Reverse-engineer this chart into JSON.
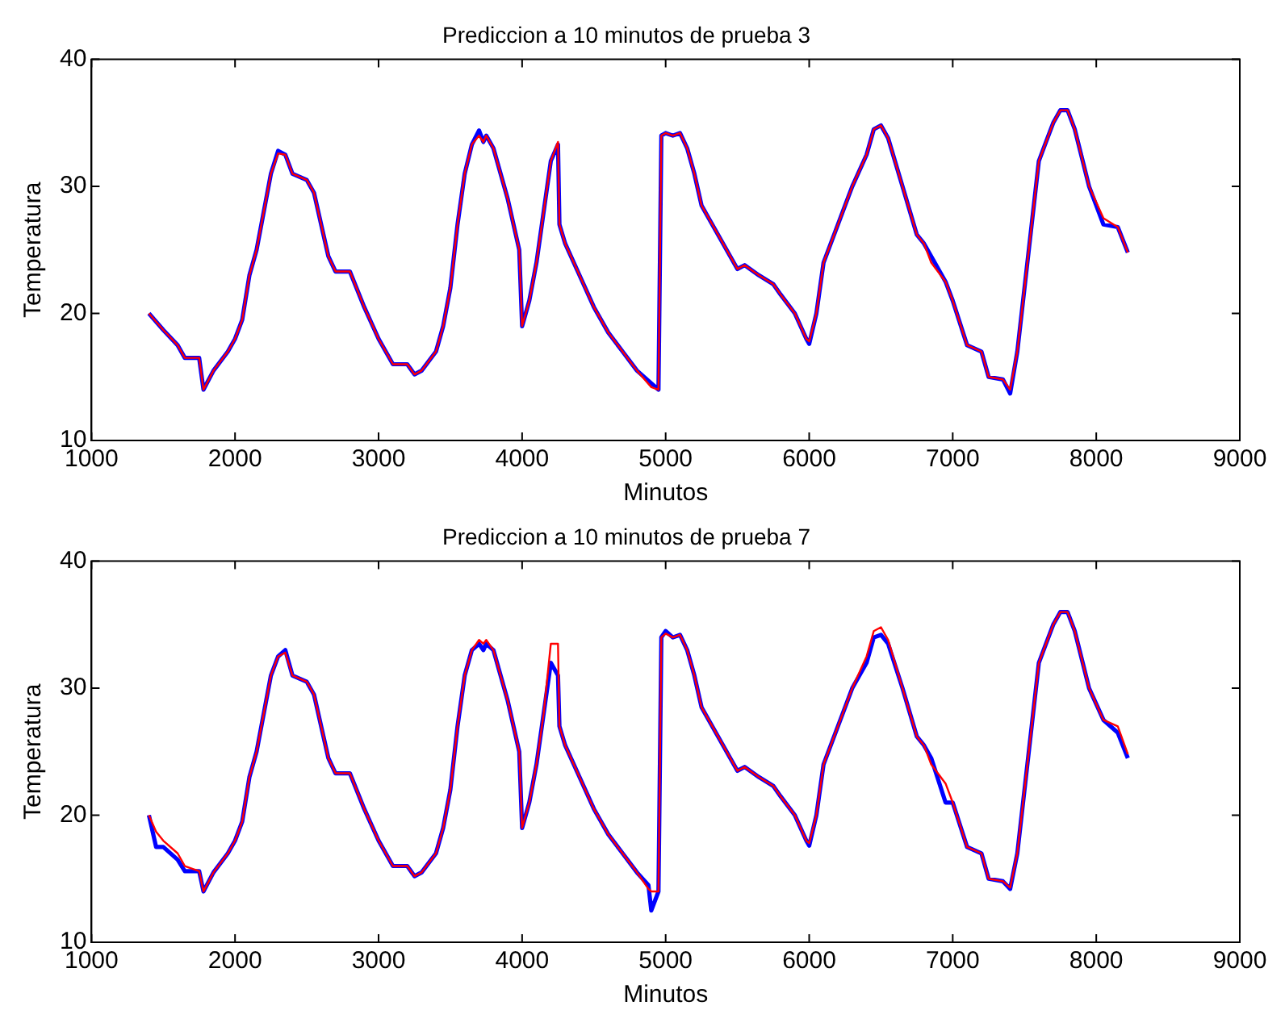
{
  "chart_data": [
    {
      "type": "line",
      "title": "Prediccion a 10 minutos de prueba 3",
      "xlabel": "Minutos",
      "ylabel": "Temperatura",
      "xlim": [
        1000,
        9000
      ],
      "xticks": [
        1000,
        2000,
        3000,
        4000,
        5000,
        6000,
        7000,
        8000,
        9000
      ],
      "ylim": [
        10,
        40
      ],
      "yticks": [
        10,
        20,
        30,
        40
      ],
      "grid": false,
      "legend": false,
      "marker": "none",
      "line_style": "solid",
      "x": [
        1400,
        1500,
        1600,
        1650,
        1750,
        1780,
        1850,
        1950,
        2000,
        2050,
        2100,
        2150,
        2200,
        2250,
        2300,
        2350,
        2400,
        2500,
        2550,
        2600,
        2650,
        2700,
        2800,
        2900,
        3000,
        3050,
        3100,
        3200,
        3250,
        3300,
        3400,
        3450,
        3500,
        3550,
        3600,
        3650,
        3700,
        3730,
        3750,
        3800,
        3850,
        3900,
        3980,
        4000,
        4050,
        4100,
        4150,
        4200,
        4250,
        4260,
        4300,
        4400,
        4500,
        4600,
        4700,
        4800,
        4900,
        4950,
        4970,
        5000,
        5050,
        5100,
        5150,
        5200,
        5250,
        5300,
        5400,
        5500,
        5550,
        5650,
        5750,
        5800,
        5900,
        5980,
        6000,
        6050,
        6100,
        6200,
        6300,
        6400,
        6450,
        6500,
        6550,
        6650,
        6750,
        6800,
        6850,
        6950,
        7000,
        7100,
        7200,
        7250,
        7350,
        7400,
        7450,
        7500,
        7550,
        7600,
        7650,
        7700,
        7750,
        7800,
        7850,
        7950,
        8050,
        8150,
        8220
      ],
      "series": [
        {
          "color": "#0000ff",
          "values": [
            20,
            18.7,
            17.5,
            16.5,
            16.5,
            14,
            15.5,
            17,
            18,
            19.5,
            23,
            25,
            28,
            31,
            32.8,
            32.5,
            31,
            30.5,
            29.5,
            27,
            24.5,
            23.3,
            23.3,
            20.5,
            18,
            17,
            16,
            16,
            15.2,
            15.5,
            17,
            19,
            22,
            27,
            31,
            33.3,
            34.4,
            33.5,
            34,
            33,
            31,
            29,
            25,
            19,
            21,
            24,
            28,
            32,
            33.3,
            27,
            25.5,
            23,
            20.5,
            18.5,
            17,
            15.5,
            14.5,
            14,
            34,
            34.2,
            34,
            34.2,
            33,
            31,
            28.5,
            27.5,
            25.5,
            23.5,
            23.8,
            23,
            22.3,
            21.5,
            20,
            18,
            17.6,
            20,
            24,
            27,
            30,
            32.5,
            34.5,
            34.8,
            33.8,
            30,
            26.2,
            25.5,
            24.5,
            22.5,
            21,
            17.5,
            17,
            15,
            14.8,
            13.7,
            17,
            22,
            27,
            32,
            33.5,
            35,
            36,
            36,
            34.5,
            30,
            27,
            26.8,
            24.8
          ]
        },
        {
          "color": "#ff0000",
          "values": [
            20,
            18.7,
            17.5,
            16.5,
            16.5,
            14,
            15.5,
            17,
            18,
            19.5,
            23,
            25,
            28,
            31,
            32.6,
            32.5,
            31,
            30.5,
            29.5,
            27,
            24.5,
            23.3,
            23.3,
            20.5,
            18,
            17,
            16,
            16,
            15.2,
            15.5,
            17,
            19,
            22,
            27,
            31,
            33.3,
            34,
            33.5,
            34,
            33,
            31,
            29,
            25,
            19,
            21,
            24,
            28,
            32,
            33.5,
            27,
            25.5,
            23,
            20.5,
            18.5,
            17,
            15.5,
            14.2,
            14,
            34,
            34.2,
            34,
            34.2,
            33,
            31,
            28.5,
            27.5,
            25.5,
            23.5,
            23.8,
            23,
            22.3,
            21.5,
            20,
            18,
            17.8,
            20,
            24,
            27,
            30,
            32.5,
            34.5,
            34.8,
            33.8,
            30,
            26.2,
            25.5,
            24,
            22.5,
            21,
            17.5,
            17,
            15,
            14.8,
            14,
            17,
            22,
            27,
            32,
            33.5,
            35,
            36,
            36,
            34.5,
            30,
            27.5,
            26.8,
            24.8
          ]
        }
      ]
    },
    {
      "type": "line",
      "title": "Prediccion a 10 minutos de prueba 7",
      "xlabel": "Minutos",
      "ylabel": "Temperatura",
      "xlim": [
        1000,
        9000
      ],
      "xticks": [
        1000,
        2000,
        3000,
        4000,
        5000,
        6000,
        7000,
        8000,
        9000
      ],
      "ylim": [
        10,
        40
      ],
      "yticks": [
        10,
        20,
        30,
        40
      ],
      "grid": false,
      "legend": false,
      "marker": "none",
      "line_style": "solid",
      "x": [
        1400,
        1450,
        1500,
        1600,
        1650,
        1750,
        1780,
        1850,
        1950,
        2000,
        2050,
        2100,
        2150,
        2200,
        2250,
        2300,
        2350,
        2400,
        2500,
        2550,
        2600,
        2650,
        2700,
        2800,
        2900,
        3000,
        3050,
        3100,
        3200,
        3250,
        3300,
        3400,
        3450,
        3500,
        3550,
        3600,
        3650,
        3700,
        3730,
        3750,
        3800,
        3850,
        3900,
        3980,
        4000,
        4050,
        4100,
        4150,
        4200,
        4250,
        4260,
        4300,
        4400,
        4500,
        4600,
        4700,
        4800,
        4880,
        4900,
        4950,
        4970,
        5000,
        5050,
        5100,
        5150,
        5200,
        5250,
        5300,
        5400,
        5500,
        5550,
        5650,
        5750,
        5800,
        5900,
        5980,
        6000,
        6050,
        6100,
        6200,
        6300,
        6400,
        6450,
        6500,
        6550,
        6650,
        6750,
        6800,
        6850,
        6950,
        7000,
        7100,
        7200,
        7250,
        7350,
        7400,
        7450,
        7500,
        7550,
        7600,
        7650,
        7700,
        7750,
        7800,
        7850,
        7950,
        8050,
        8150,
        8220
      ],
      "series": [
        {
          "color": "#0000ff",
          "values": [
            20,
            17.5,
            17.5,
            16.5,
            15.6,
            15.6,
            14,
            15.5,
            17,
            18,
            19.5,
            23,
            25,
            28,
            31,
            32.5,
            33,
            31,
            30.5,
            29.5,
            27,
            24.5,
            23.3,
            23.3,
            20.5,
            18,
            17,
            16,
            16,
            15.2,
            15.5,
            17,
            19,
            22,
            27,
            31,
            33,
            33.5,
            33,
            33.5,
            33,
            31,
            29,
            25,
            19,
            21,
            24,
            28,
            32,
            31,
            27,
            25.5,
            23,
            20.5,
            18.5,
            17,
            15.5,
            14.5,
            12.5,
            14,
            34,
            34.5,
            34,
            34.2,
            33,
            31,
            28.5,
            27.5,
            25.5,
            23.5,
            23.8,
            23,
            22.3,
            21.5,
            20,
            18,
            17.6,
            20,
            24,
            27,
            30,
            32,
            34,
            34.2,
            33.5,
            30,
            26.2,
            25.5,
            24.5,
            21,
            21,
            17.5,
            17,
            15,
            14.8,
            14.2,
            17,
            22,
            27,
            32,
            33.5,
            35,
            36,
            36,
            34.5,
            30,
            27.5,
            26.5,
            24.5
          ]
        },
        {
          "color": "#ff0000",
          "values": [
            20,
            18.7,
            18,
            17,
            16,
            15.6,
            14,
            15.5,
            17,
            18,
            19.5,
            23,
            25,
            28,
            31,
            32.5,
            32.8,
            31,
            30.5,
            29.5,
            27,
            24.5,
            23.3,
            23.3,
            20.5,
            18,
            17,
            16,
            16,
            15.2,
            15.5,
            17,
            19,
            22,
            27,
            31,
            33,
            33.8,
            33.5,
            33.8,
            33,
            31,
            29,
            25,
            19,
            21,
            24,
            28,
            33.5,
            33.5,
            27,
            25.5,
            23,
            20.5,
            18.5,
            17,
            15.5,
            14.2,
            14,
            14,
            34,
            34.3,
            34,
            34.2,
            33,
            31,
            28.5,
            27.5,
            25.5,
            23.5,
            23.8,
            23,
            22.3,
            21.5,
            20,
            18,
            17.8,
            20,
            24,
            27,
            30,
            32.5,
            34.5,
            34.8,
            33.8,
            30,
            26.2,
            25.5,
            24,
            22.5,
            21,
            17.5,
            17,
            15,
            14.8,
            14.3,
            17,
            22,
            27,
            32,
            33.5,
            35,
            36,
            36,
            34.5,
            30,
            27.5,
            27,
            24.8
          ]
        }
      ]
    }
  ]
}
